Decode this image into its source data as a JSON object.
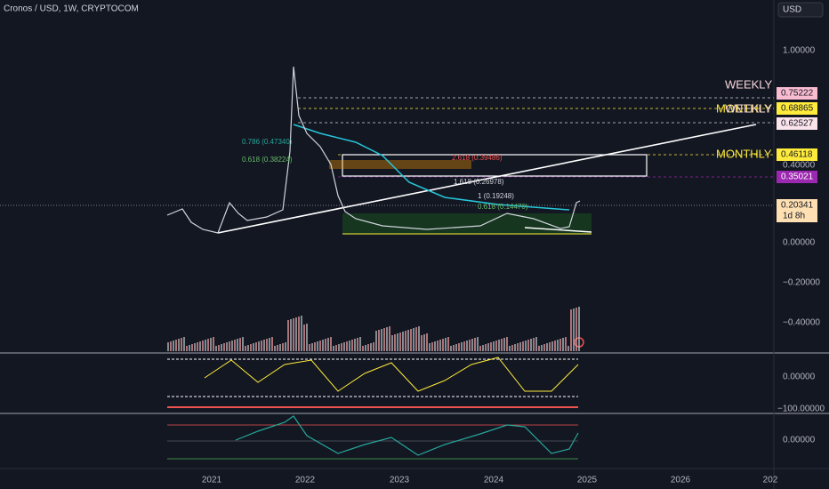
{
  "header": {
    "symbol": "Cronos / USD, 1W, CRYPTOCOM",
    "currency": "USD"
  },
  "price_axis": [
    "1.00000",
    "0.40000",
    "0.00000",
    "−0.20000",
    "−0.40000"
  ],
  "oscillator_axes": [
    "0.00000",
    "−100.00000",
    "0.00000"
  ],
  "price_badges": [
    "0.75222",
    "0.68865",
    "0.62527",
    "0.46118",
    "0.35021",
    "0.20341"
  ],
  "countdown": "1d 8h",
  "annotations": [
    "WEEKLY",
    "MONTHLY",
    "WEEKLY",
    "MONTHLY"
  ],
  "fib_labels": [
    "0.786 (0.47340)",
    "0.618 (0.38224)",
    "2.618 (0.39486)",
    "1.618 (0.26978)",
    "1 (0.19248)",
    "0.618 (0.14470)"
  ],
  "time_axis": [
    "2021",
    "2022",
    "2023",
    "2024",
    "2025",
    "2026",
    "202"
  ]
}
